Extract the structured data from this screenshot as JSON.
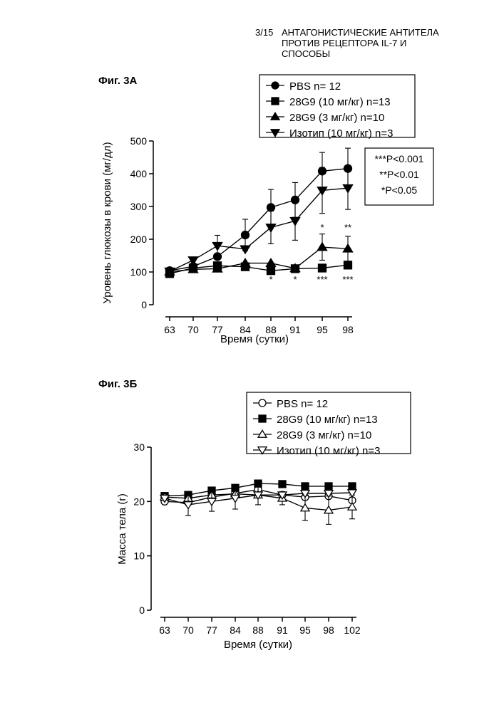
{
  "header": {
    "page_number": "3/15",
    "title_lines": [
      "АНТАГОНИСТИЧЕСКИЕ АНТИТЕЛА",
      "ПРОТИВ РЕЦЕПТОРА IL-7 И",
      "СПОСОБЫ"
    ]
  },
  "chart_data": [
    {
      "type": "line",
      "figure_label": "Фиг. 3А",
      "xlabel": "Время (сутки)",
      "ylabel": "Уровень глюкозы в крови (мг/дл)",
      "categories": [
        "63",
        "70",
        "77",
        "84",
        "88",
        "91",
        "95",
        "98"
      ],
      "ylim": [
        0,
        500
      ],
      "yticks": [
        0,
        100,
        200,
        300,
        400,
        500
      ],
      "legend_position": "top-right",
      "series": [
        {
          "name": "PBS n= 12",
          "marker": "circle-filled",
          "values": [
            104,
            117,
            147,
            213,
            297,
            320,
            408,
            416
          ],
          "errors": [
            null,
            null,
            null,
            48,
            55,
            53,
            57,
            62
          ]
        },
        {
          "name": "28G9 (10 мг/кг) n=13",
          "marker": "square-filled",
          "values": [
            95,
            112,
            119,
            116,
            104,
            110,
            112,
            121
          ],
          "errors": [
            null,
            null,
            null,
            null,
            null,
            null,
            null,
            null
          ]
        },
        {
          "name": "28G9 (3 мг/кг) n=10",
          "marker": "triangle-up-filled",
          "values": [
            101,
            108,
            110,
            127,
            127,
            111,
            176,
            171
          ],
          "errors": [
            null,
            null,
            null,
            null,
            null,
            null,
            40,
            38
          ]
        },
        {
          "name": "Изотип (10 мг/кг) n=3",
          "marker": "triangle-down-filled",
          "values": [
            102,
            136,
            180,
            170,
            236,
            256,
            349,
            356
          ],
          "errors": [
            null,
            null,
            32,
            null,
            50,
            59,
            70,
            65
          ]
        }
      ],
      "significance_box": [
        "***P<0.001",
        "**P<0.01",
        "*P<0.05"
      ],
      "significance_marks": [
        {
          "x": "88",
          "y": 67,
          "text": "*"
        },
        {
          "x": "91",
          "y": 67,
          "text": "*"
        },
        {
          "x": "95",
          "y": 67,
          "text": "***"
        },
        {
          "x": "98",
          "y": 67,
          "text": "***"
        },
        {
          "x": "95",
          "y": 226,
          "text": "*"
        },
        {
          "x": "98",
          "y": 226,
          "text": "**"
        }
      ]
    },
    {
      "type": "line",
      "figure_label": "Фиг. 3Б",
      "xlabel": "Время (сутки)",
      "ylabel": "Масса тела (г)",
      "categories": [
        "63",
        "70",
        "77",
        "84",
        "88",
        "91",
        "95",
        "98",
        "102"
      ],
      "ylim": [
        0,
        30
      ],
      "yticks": [
        0,
        10,
        20,
        30
      ],
      "legend_position": "top-right",
      "series": [
        {
          "name": "PBS n= 12",
          "marker": "circle-open",
          "values": [
            20.0,
            19.8,
            20.8,
            21.5,
            22.2,
            21.2,
            20.8,
            21.0,
            20.2
          ],
          "errors": [
            null,
            null,
            null,
            null,
            null,
            null,
            null,
            null,
            null
          ]
        },
        {
          "name": "28G9 (10 мг/кг) n=13",
          "marker": "square-filled",
          "values": [
            21.0,
            21.2,
            22.0,
            22.5,
            23.3,
            23.2,
            22.8,
            22.8,
            22.8
          ],
          "errors": [
            null,
            null,
            null,
            null,
            null,
            null,
            null,
            null,
            null
          ]
        },
        {
          "name": "28G9 (3 мг/кг) n=10",
          "marker": "triangle-up-open",
          "values": [
            20.8,
            20.6,
            21.2,
            21.4,
            21.2,
            20.6,
            18.8,
            18.4,
            19.0
          ],
          "errors": [
            null,
            null,
            null,
            null,
            null,
            1.2,
            2.3,
            2.6,
            2.2
          ]
        },
        {
          "name": "Изотип (10 мг/кг) n=3",
          "marker": "triangle-down-open",
          "values": [
            20.6,
            19.4,
            20.0,
            20.6,
            21.2,
            21.2,
            21.5,
            21.5,
            21.6
          ],
          "errors": [
            null,
            2.0,
            1.8,
            2.0,
            1.8,
            null,
            null,
            null,
            null
          ]
        }
      ]
    }
  ]
}
